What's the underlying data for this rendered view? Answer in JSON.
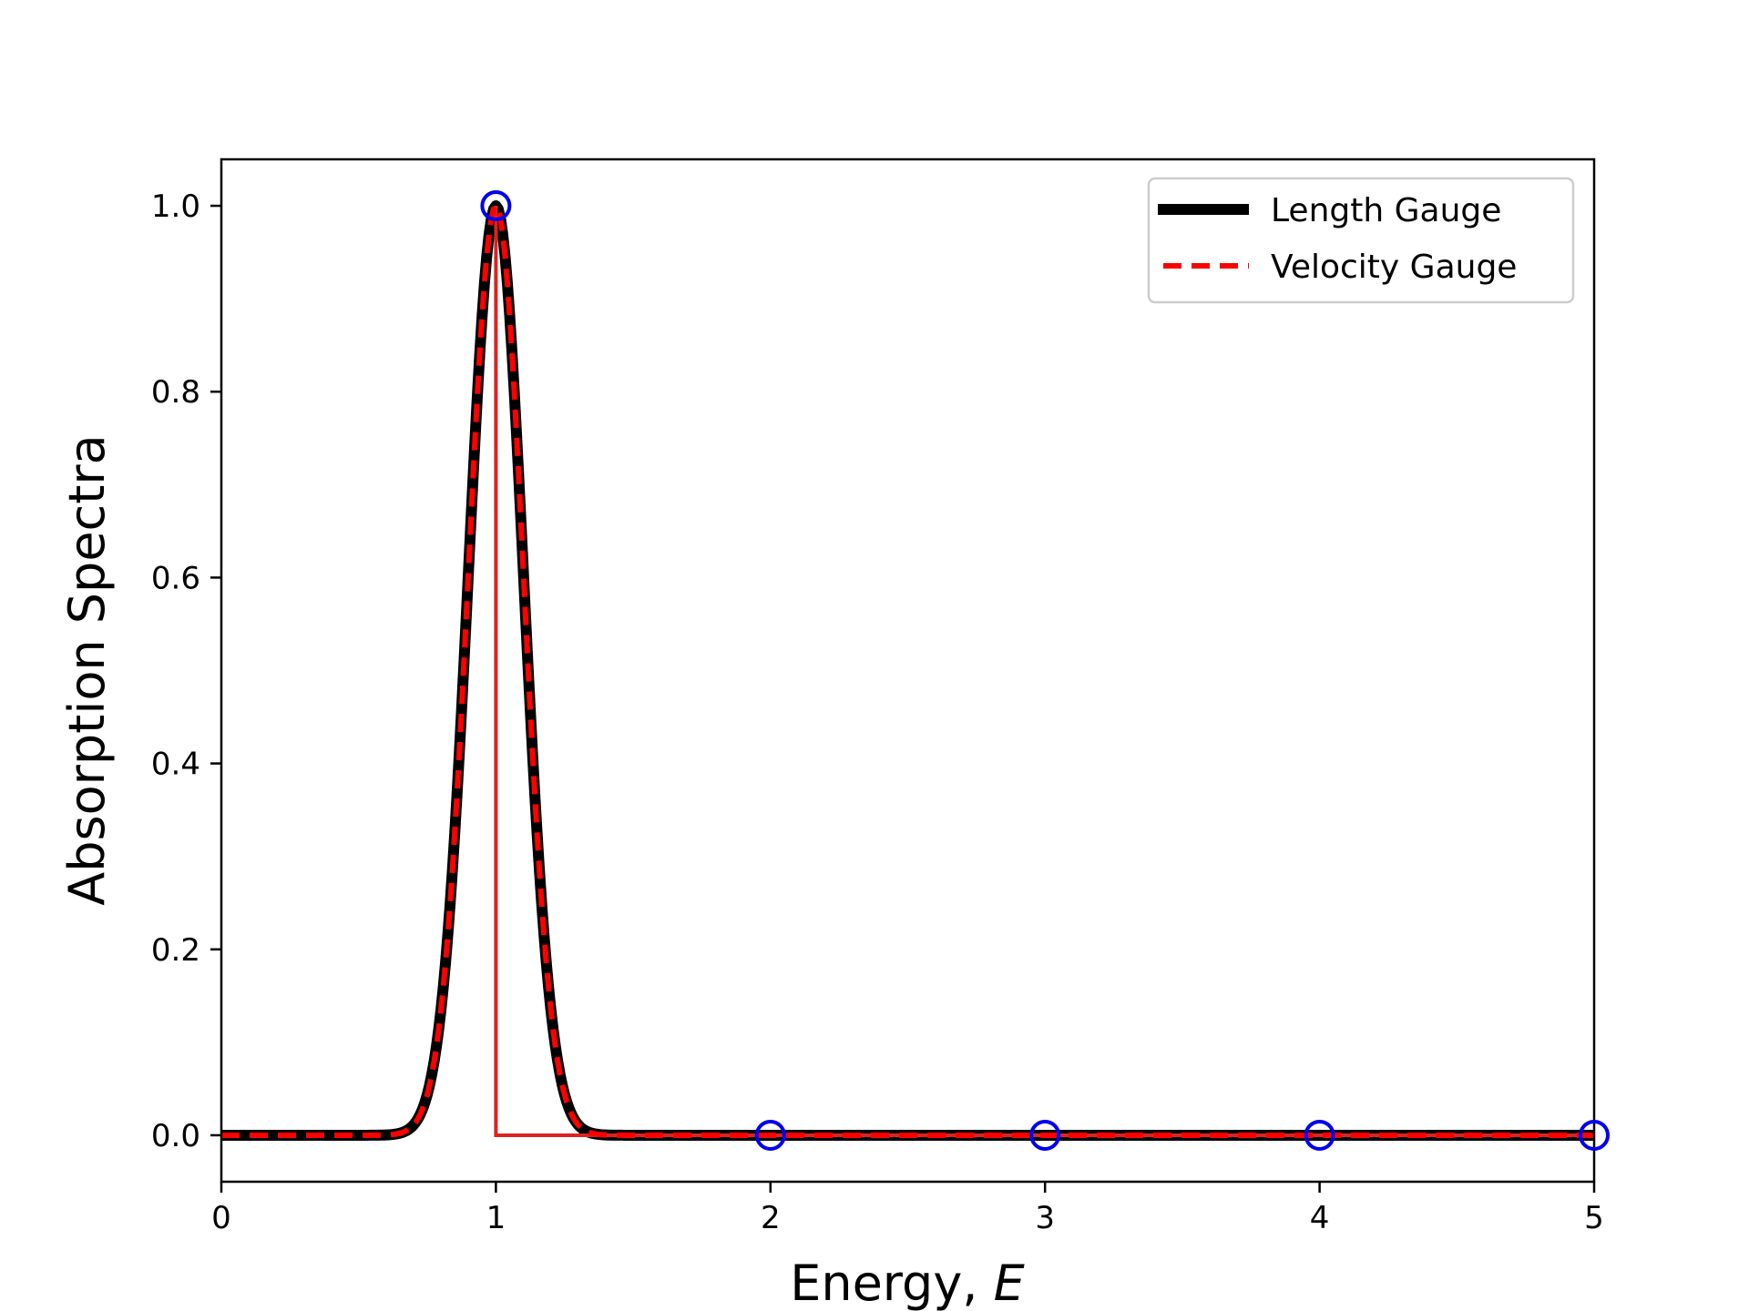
{
  "chart_data": {
    "type": "line",
    "xlabel": "Energy, ",
    "xlabel_italic": "E",
    "ylabel": "Absorption Spectra",
    "xlim": [
      0,
      5
    ],
    "ylim": [
      -0.05,
      1.05
    ],
    "xticks": [
      "0",
      "1",
      "2",
      "3",
      "4",
      "5"
    ],
    "yticks": [
      "0.0",
      "0.2",
      "0.4",
      "0.6",
      "0.8",
      "1.0"
    ],
    "grid": false,
    "legend_position": "top-right",
    "series": [
      {
        "name": "Length Gauge",
        "style": "solid",
        "color": "#000000",
        "function": "gaussian",
        "center": 1.0,
        "amplitude": 1.0,
        "sigma": 0.1
      },
      {
        "name": "Velocity Gauge",
        "style": "dashed",
        "color": "#ff0000",
        "function": "gaussian",
        "center": 1.0,
        "amplitude": 1.0,
        "sigma": 0.1
      }
    ],
    "stem": {
      "color": "#dd2222",
      "x": [
        1.0,
        1.0,
        5.0
      ],
      "y": [
        1.0,
        0.0,
        0.0
      ]
    },
    "markers": {
      "color": "#0000ee",
      "shape": "open-circle",
      "x": [
        1,
        2,
        3,
        4,
        5
      ],
      "y": [
        1.0,
        0.0,
        0.0,
        0.0,
        0.0
      ]
    }
  }
}
